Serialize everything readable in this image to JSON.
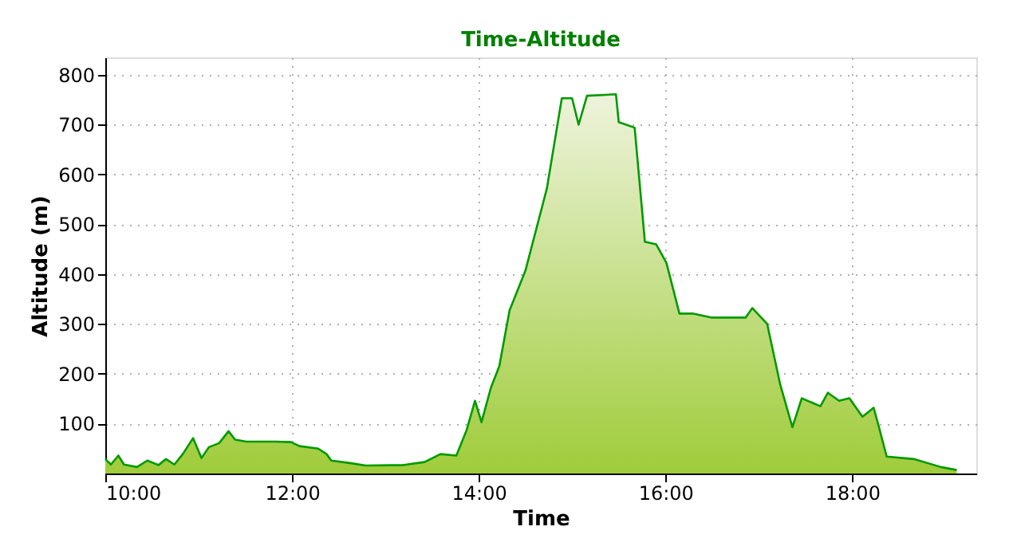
{
  "chart_data": {
    "type": "area",
    "title": "Time-Altitude",
    "xlabel": "Time",
    "ylabel": "Altitude (m)",
    "x": [
      10.0,
      10.06,
      10.14,
      10.2,
      10.34,
      10.45,
      10.57,
      10.65,
      10.74,
      10.83,
      10.94,
      11.03,
      11.11,
      11.22,
      11.32,
      11.39,
      11.51,
      11.82,
      11.99,
      12.08,
      12.28,
      12.37,
      12.42,
      12.62,
      12.79,
      13.19,
      13.42,
      13.59,
      13.76,
      13.87,
      13.96,
      14.03,
      14.13,
      14.22,
      14.33,
      14.5,
      14.73,
      14.89,
      15.0,
      15.07,
      15.16,
      15.47,
      15.5,
      15.58,
      15.67,
      15.78,
      15.9,
      16.01,
      16.15,
      16.29,
      16.49,
      16.86,
      16.93,
      17.09,
      17.23,
      17.36,
      17.46,
      17.66,
      17.74,
      17.86,
      17.97,
      18.11,
      18.23,
      18.28,
      18.37,
      18.66,
      18.95,
      19.12
    ],
    "series": [
      {
        "color": "#009a00",
        "values": [
          29,
          18,
          36,
          18,
          13,
          26,
          17,
          29,
          18,
          39,
          71,
          31,
          53,
          61,
          85,
          68,
          64,
          64,
          63,
          55,
          50,
          39,
          26,
          21,
          16,
          17,
          23,
          39,
          36,
          87,
          146,
          103,
          172,
          215,
          327,
          407,
          572,
          753,
          753,
          700,
          758,
          761,
          705,
          700,
          694,
          465,
          460,
          423,
          321,
          321,
          313,
          313,
          332,
          300,
          178,
          93,
          151,
          135,
          162,
          146,
          151,
          114,
          132,
          98,
          34,
          29,
          13,
          7
        ]
      }
    ],
    "xlim": [
      10.0,
      19.33
    ],
    "ylim": [
      0,
      835
    ],
    "xticks": [
      {
        "value": 10,
        "label": "10:00"
      },
      {
        "value": 12,
        "label": "12:00"
      },
      {
        "value": 14,
        "label": "14:00"
      },
      {
        "value": 16,
        "label": "16:00"
      },
      {
        "value": 18,
        "label": "18:00"
      }
    ],
    "yticks": [
      100,
      200,
      300,
      400,
      500,
      600,
      700,
      800
    ],
    "grid": true,
    "marker": "none",
    "line_style": "solid"
  }
}
